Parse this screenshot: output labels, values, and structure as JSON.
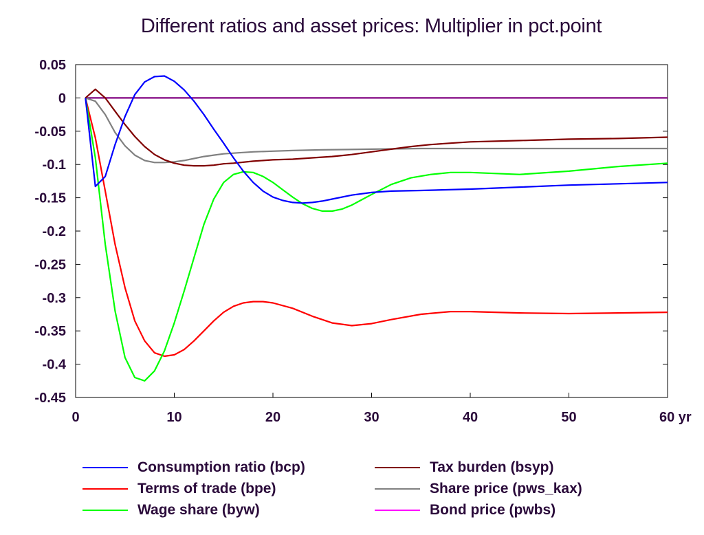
{
  "chart_data": {
    "type": "line",
    "title": "Different ratios and asset prices: Multiplier in pct.point",
    "xlabel": "",
    "ylabel": "",
    "xlim": [
      0,
      60
    ],
    "ylim": [
      -0.45,
      0.05
    ],
    "x_ticks": [
      0,
      10,
      20,
      30,
      40,
      50,
      60
    ],
    "x_tick_labels": [
      "0",
      "10",
      "20",
      "30",
      "40",
      "50",
      "60 yr"
    ],
    "y_ticks": [
      0.05,
      0,
      -0.05,
      -0.1,
      -0.15,
      -0.2,
      -0.25,
      -0.3,
      -0.35,
      -0.4,
      -0.45
    ],
    "y_tick_labels": [
      "0.05",
      "0",
      "-0.05",
      "-0.1",
      "-0.15",
      "-0.2",
      "-0.25",
      "-0.3",
      "-0.35",
      "-0.4",
      "-0.45"
    ],
    "grid": false,
    "legend_position": "bottom, two columns",
    "series": [
      {
        "name": "Consumption ratio (bcp)",
        "color": "#0000ff",
        "x": [
          1,
          2,
          3,
          4,
          5,
          6,
          7,
          8,
          9,
          10,
          11,
          12,
          13,
          14,
          15,
          16,
          17,
          18,
          19,
          20,
          21,
          22,
          23,
          24,
          25,
          26,
          28,
          30,
          32,
          35,
          40,
          45,
          50,
          55,
          60
        ],
        "y": [
          0,
          -0.133,
          -0.118,
          -0.07,
          -0.028,
          0.005,
          0.024,
          0.032,
          0.033,
          0.025,
          0.012,
          -0.005,
          -0.025,
          -0.047,
          -0.068,
          -0.09,
          -0.11,
          -0.127,
          -0.14,
          -0.149,
          -0.154,
          -0.157,
          -0.158,
          -0.157,
          -0.155,
          -0.152,
          -0.146,
          -0.142,
          -0.14,
          -0.139,
          -0.137,
          -0.134,
          -0.131,
          -0.129,
          -0.127
        ]
      },
      {
        "name": "Terms of trade (bpe)",
        "color": "#ff0000",
        "x": [
          1,
          2,
          3,
          4,
          5,
          6,
          7,
          8,
          9,
          10,
          11,
          12,
          13,
          14,
          15,
          16,
          17,
          18,
          19,
          20,
          22,
          24,
          26,
          28,
          30,
          32,
          35,
          38,
          40,
          45,
          50,
          55,
          60
        ],
        "y": [
          0,
          -0.06,
          -0.14,
          -0.22,
          -0.285,
          -0.335,
          -0.365,
          -0.383,
          -0.388,
          -0.386,
          -0.378,
          -0.365,
          -0.35,
          -0.335,
          -0.322,
          -0.313,
          -0.308,
          -0.306,
          -0.306,
          -0.308,
          -0.316,
          -0.328,
          -0.338,
          -0.342,
          -0.339,
          -0.333,
          -0.325,
          -0.321,
          -0.321,
          -0.323,
          -0.324,
          -0.323,
          -0.322
        ]
      },
      {
        "name": "Wage share (byw)",
        "color": "#00ff00",
        "x": [
          1,
          2,
          3,
          4,
          5,
          6,
          7,
          8,
          9,
          10,
          11,
          12,
          13,
          14,
          15,
          16,
          17,
          18,
          19,
          20,
          21,
          22,
          23,
          24,
          25,
          26,
          27,
          28,
          29,
          30,
          32,
          34,
          36,
          38,
          40,
          45,
          50,
          55,
          60
        ],
        "y": [
          0,
          -0.09,
          -0.22,
          -0.32,
          -0.39,
          -0.42,
          -0.425,
          -0.41,
          -0.38,
          -0.338,
          -0.29,
          -0.24,
          -0.19,
          -0.152,
          -0.127,
          -0.115,
          -0.111,
          -0.112,
          -0.118,
          -0.127,
          -0.138,
          -0.149,
          -0.159,
          -0.166,
          -0.17,
          -0.17,
          -0.167,
          -0.161,
          -0.153,
          -0.145,
          -0.13,
          -0.12,
          -0.115,
          -0.112,
          -0.112,
          -0.115,
          -0.11,
          -0.103,
          -0.098
        ]
      },
      {
        "name": "Tax burden (bsyp)",
        "color": "#800000",
        "x": [
          1,
          2,
          3,
          4,
          5,
          6,
          7,
          8,
          9,
          10,
          11,
          12,
          13,
          14,
          15,
          16,
          18,
          20,
          22,
          24,
          26,
          28,
          30,
          32,
          34,
          36,
          38,
          40,
          45,
          50,
          55,
          60
        ],
        "y": [
          0,
          0.013,
          0.0,
          -0.02,
          -0.04,
          -0.058,
          -0.073,
          -0.085,
          -0.093,
          -0.098,
          -0.101,
          -0.102,
          -0.102,
          -0.101,
          -0.099,
          -0.098,
          -0.095,
          -0.093,
          -0.092,
          -0.09,
          -0.088,
          -0.085,
          -0.081,
          -0.077,
          -0.073,
          -0.07,
          -0.068,
          -0.066,
          -0.064,
          -0.062,
          -0.061,
          -0.059
        ]
      },
      {
        "name": "Share price (pws_kax)",
        "color": "#808080",
        "x": [
          1,
          2,
          3,
          4,
          5,
          6,
          7,
          8,
          9,
          10,
          11,
          12,
          13,
          14,
          15,
          16,
          18,
          20,
          22,
          25,
          30,
          35,
          40,
          45,
          50,
          55,
          60
        ],
        "y": [
          0,
          -0.005,
          -0.025,
          -0.052,
          -0.072,
          -0.086,
          -0.094,
          -0.097,
          -0.097,
          -0.096,
          -0.094,
          -0.091,
          -0.088,
          -0.086,
          -0.084,
          -0.083,
          -0.081,
          -0.08,
          -0.079,
          -0.078,
          -0.077,
          -0.076,
          -0.076,
          -0.076,
          -0.076,
          -0.076,
          -0.076
        ]
      },
      {
        "name": "Bond price (pwbs)",
        "color": "#ff00ff",
        "x": [
          1,
          60
        ],
        "y": [
          0,
          0
        ]
      }
    ]
  },
  "style": {
    "axis_color": "#000000",
    "text_color": "#2a0a3a",
    "bond_line_color": "#800080"
  }
}
